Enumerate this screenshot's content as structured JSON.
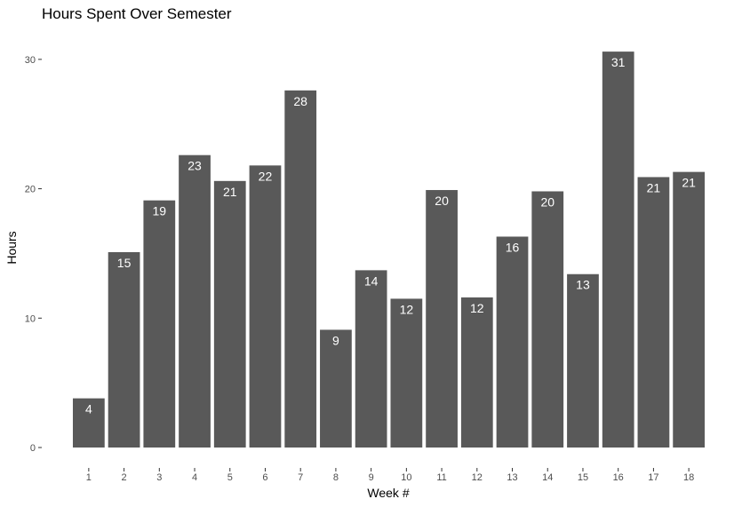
{
  "chart_data": {
    "type": "bar",
    "title": "Hours Spent Over Semester",
    "xlabel": "Week #",
    "ylabel": "Hours",
    "categories": [
      "1",
      "2",
      "3",
      "4",
      "5",
      "6",
      "7",
      "8",
      "9",
      "10",
      "11",
      "12",
      "13",
      "14",
      "15",
      "16",
      "17",
      "18"
    ],
    "values": [
      3.8,
      15.1,
      19.1,
      22.6,
      20.6,
      21.8,
      27.6,
      9.1,
      13.7,
      11.5,
      19.9,
      11.6,
      16.3,
      19.8,
      13.4,
      30.6,
      20.9,
      21.3
    ],
    "value_labels": [
      "4",
      "15",
      "19",
      "23",
      "21",
      "22",
      "28",
      "9",
      "14",
      "12",
      "20",
      "12",
      "16",
      "20",
      "13",
      "31",
      "21",
      "21"
    ],
    "yticks": [
      0,
      10,
      20,
      30
    ],
    "ylim": [
      0,
      31.5
    ],
    "grid": false,
    "legend": "none",
    "bar_color": "#595959",
    "label_color": "#ffffff"
  }
}
